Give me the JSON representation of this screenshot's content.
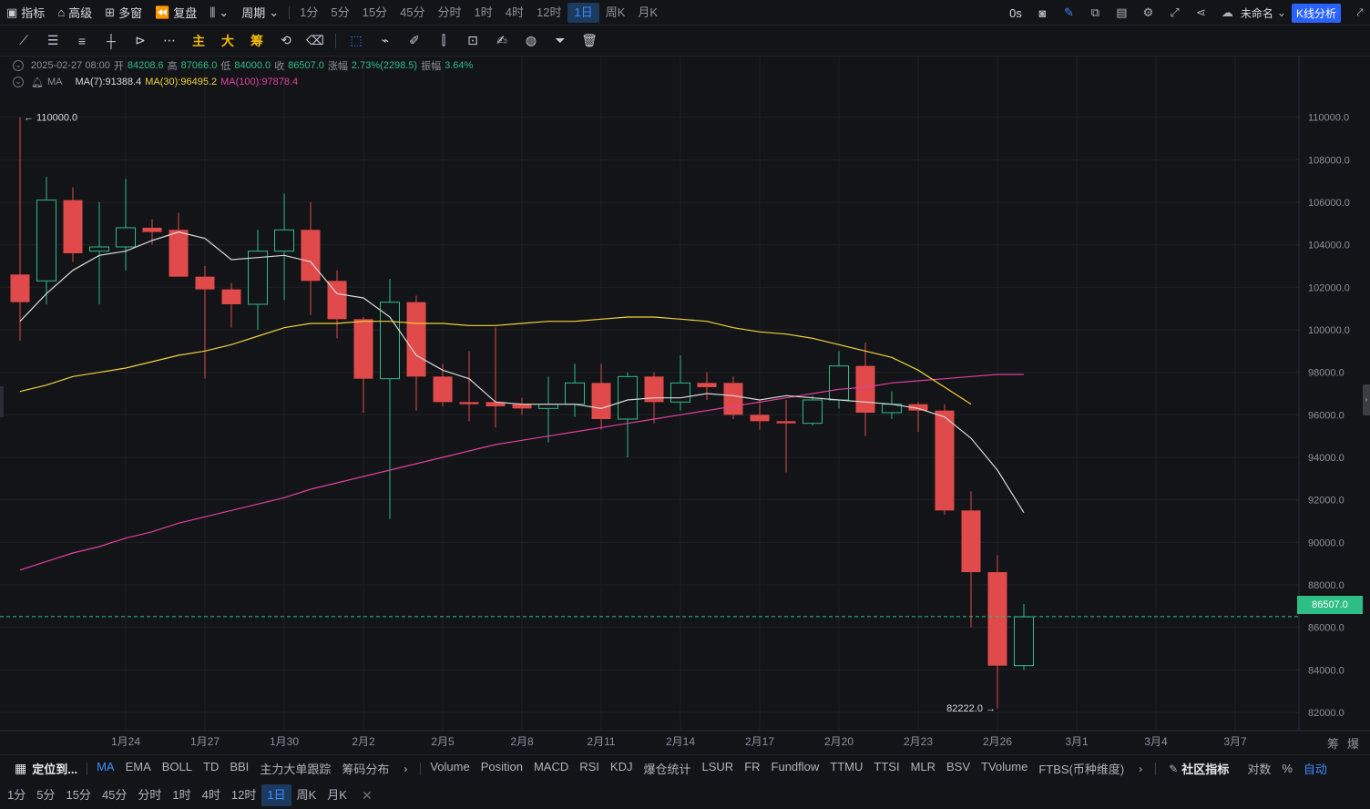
{
  "toolbar": {
    "indicators": "指标",
    "advanced": "高级",
    "multi_window": "多窗",
    "replay": "复盘",
    "period": "周期",
    "timeframes": [
      "1分",
      "5分",
      "15分",
      "45分",
      "分时",
      "1时",
      "4时",
      "12时",
      "1日",
      "周K",
      "月K"
    ],
    "active_timeframe": "1日",
    "countdown": "0s",
    "layout_name": "未命名",
    "kline_analysis": "K线分析"
  },
  "drawbar": {
    "main": "主",
    "big": "大",
    "chips": "筹"
  },
  "ohlc": {
    "date": "2025-02-27 08:00",
    "open_label": "开",
    "open": "84208.6",
    "high_label": "高",
    "high": "87066.0",
    "low_label": "低",
    "low": "84000.0",
    "close_label": "收",
    "close": "86507.0",
    "change_label": "涨幅",
    "change": "2.73%(2298.5)",
    "amp_label": "振幅",
    "amp": "3.64%"
  },
  "ma_legend": {
    "name": "MA",
    "ma7": "MA(7):91388.4",
    "ma30": "MA(30):96495.2",
    "ma100": "MA(100):97878.4"
  },
  "colors": {
    "up": "#2ebd85",
    "down": "#e04a4a",
    "ma7": "#d9d9d9",
    "ma30": "#f0d23c",
    "ma100": "#e040a0",
    "accent": "#2962ff"
  },
  "chart_data": {
    "type": "candlestick",
    "y_ticks": [
      "110000.0",
      "108000.0",
      "106000.0",
      "104000.0",
      "102000.0",
      "100000.0",
      "98000.0",
      "96000.0",
      "94000.0",
      "92000.0",
      "90000.0",
      "88000.0",
      "86000.0",
      "84000.0",
      "82000.0"
    ],
    "x_ticks": [
      "1月24",
      "1月27",
      "1月30",
      "2月2",
      "2月5",
      "2月8",
      "2月11",
      "2月14",
      "2月17",
      "2月20",
      "2月23",
      "2月26",
      "3月1",
      "3月4",
      "3月7"
    ],
    "ylim": [
      81400,
      111400
    ],
    "high_marker": "110000.0",
    "low_marker": "82222.0",
    "last_price": "86507.0",
    "candles": [
      {
        "o": 102600,
        "h": 110000,
        "l": 99500,
        "c": 101300
      },
      {
        "o": 102300,
        "h": 107200,
        "l": 101200,
        "c": 106100
      },
      {
        "o": 106100,
        "h": 106700,
        "l": 103200,
        "c": 103600
      },
      {
        "o": 103700,
        "h": 106000,
        "l": 101200,
        "c": 103900
      },
      {
        "o": 103900,
        "h": 107100,
        "l": 102800,
        "c": 104800
      },
      {
        "o": 104800,
        "h": 105200,
        "l": 104000,
        "c": 104600
      },
      {
        "o": 104700,
        "h": 105500,
        "l": 102800,
        "c": 102500
      },
      {
        "o": 102500,
        "h": 103000,
        "l": 97700,
        "c": 101900
      },
      {
        "o": 101900,
        "h": 102200,
        "l": 100100,
        "c": 101200
      },
      {
        "o": 101200,
        "h": 104700,
        "l": 100000,
        "c": 103700
      },
      {
        "o": 103700,
        "h": 106400,
        "l": 101400,
        "c": 104700
      },
      {
        "o": 104700,
        "h": 106000,
        "l": 100700,
        "c": 102300
      },
      {
        "o": 102300,
        "h": 102800,
        "l": 99600,
        "c": 100500
      },
      {
        "o": 100500,
        "h": 100600,
        "l": 96100,
        "c": 97700
      },
      {
        "o": 97700,
        "h": 102400,
        "l": 91100,
        "c": 101300
      },
      {
        "o": 101300,
        "h": 101600,
        "l": 96200,
        "c": 97800
      },
      {
        "o": 97800,
        "h": 98400,
        "l": 96400,
        "c": 96600
      },
      {
        "o": 96600,
        "h": 99000,
        "l": 95700,
        "c": 96500
      },
      {
        "o": 96600,
        "h": 100100,
        "l": 95400,
        "c": 96400
      },
      {
        "o": 96500,
        "h": 96800,
        "l": 96000,
        "c": 96300
      },
      {
        "o": 96300,
        "h": 97800,
        "l": 94700,
        "c": 96500
      },
      {
        "o": 96500,
        "h": 98400,
        "l": 95900,
        "c": 97500
      },
      {
        "o": 97500,
        "h": 98400,
        "l": 95300,
        "c": 95800
      },
      {
        "o": 95800,
        "h": 98000,
        "l": 94000,
        "c": 97800
      },
      {
        "o": 97800,
        "h": 98000,
        "l": 95600,
        "c": 96600
      },
      {
        "o": 96600,
        "h": 98800,
        "l": 96200,
        "c": 97500
      },
      {
        "o": 97500,
        "h": 98000,
        "l": 96700,
        "c": 97300
      },
      {
        "o": 97500,
        "h": 97800,
        "l": 95800,
        "c": 96000
      },
      {
        "o": 96000,
        "h": 96700,
        "l": 95300,
        "c": 95700
      },
      {
        "o": 95700,
        "h": 96700,
        "l": 93300,
        "c": 95600
      },
      {
        "o": 95600,
        "h": 96900,
        "l": 95500,
        "c": 96700
      },
      {
        "o": 96700,
        "h": 99000,
        "l": 96300,
        "c": 98300
      },
      {
        "o": 98300,
        "h": 99400,
        "l": 95000,
        "c": 96100
      },
      {
        "o": 96100,
        "h": 97100,
        "l": 95800,
        "c": 96500
      },
      {
        "o": 96500,
        "h": 96600,
        "l": 95200,
        "c": 96200
      },
      {
        "o": 96200,
        "h": 96500,
        "l": 91300,
        "c": 91500
      },
      {
        "o": 91500,
        "h": 92400,
        "l": 86000,
        "c": 88600
      },
      {
        "o": 88600,
        "h": 89400,
        "l": 82200,
        "c": 84200
      },
      {
        "o": 84200,
        "h": 87100,
        "l": 84000,
        "c": 86500
      }
    ],
    "ma7": [
      100400,
      101700,
      102800,
      103500,
      103700,
      104200,
      104600,
      104300,
      103300,
      103400,
      103500,
      103200,
      101700,
      101500,
      100600,
      98800,
      98100,
      97700,
      96600,
      96500,
      96500,
      96500,
      96300,
      96700,
      96800,
      96800,
      97000,
      96900,
      96700,
      96900,
      96800,
      96700,
      96600,
      96500,
      96300,
      95900,
      94900,
      93400,
      91400
    ],
    "ma30": [
      97100,
      97400,
      97800,
      98000,
      98200,
      98500,
      98800,
      99000,
      99300,
      99700,
      100100,
      100300,
      100300,
      100400,
      100400,
      100300,
      100300,
      100200,
      100200,
      100300,
      100400,
      100400,
      100500,
      100600,
      100600,
      100500,
      100400,
      100100,
      99900,
      99800,
      99600,
      99300,
      99000,
      98700,
      98100,
      97300,
      96500
    ],
    "ma100": [
      88700,
      89100,
      89500,
      89800,
      90200,
      90500,
      90900,
      91200,
      91500,
      91800,
      92100,
      92500,
      92800,
      93100,
      93400,
      93700,
      94000,
      94300,
      94600,
      94800,
      95000,
      95200,
      95400,
      95600,
      95800,
      96000,
      96200,
      96400,
      96600,
      96800,
      97000,
      97200,
      97300,
      97500,
      97600,
      97700,
      97800,
      97900,
      97900
    ]
  },
  "indicator_bar": {
    "locate": "定位到...",
    "main_items": [
      "MA",
      "EMA",
      "BOLL",
      "TD",
      "BBI",
      "主力大单跟踪",
      "筹码分布"
    ],
    "sub_items": [
      "Volume",
      "Position",
      "MACD",
      "RSI",
      "KDJ",
      "爆仓统计",
      "LSUR",
      "FR",
      "Fundflow",
      "TTMU",
      "TTSI",
      "MLR",
      "BSV",
      "TVolume",
      "FTBS(币种维度)"
    ],
    "community": "社区指标",
    "log": "对数",
    "percent": "%",
    "auto": "自动"
  },
  "bottom_timeframes": [
    "1分",
    "5分",
    "15分",
    "45分",
    "分时",
    "1时",
    "4时",
    "12时",
    "1日",
    "周K",
    "月K"
  ],
  "axis_corner": {
    "a": "筹",
    "b": "爆"
  }
}
